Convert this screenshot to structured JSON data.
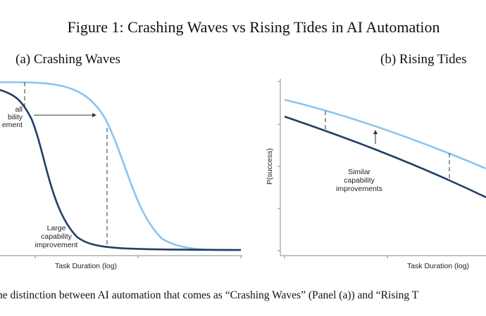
{
  "figure": {
    "title": "Figure 1: Crashing Waves vs Rising Tides in AI Automation",
    "caption": "he distinction between AI automation that comes as “Crashing Waves” (Panel (a)) and “Rising T"
  },
  "panel_a": {
    "title": "(a) Crashing Waves",
    "xlabel": "Task Duration (log)",
    "annotation_small": [
      "all",
      "bility",
      "ement"
    ],
    "annotation_large": [
      "Large",
      "capability",
      "improvement"
    ]
  },
  "panel_b": {
    "title": "(b) Rising Tides",
    "xlabel": "Task Duration (log)",
    "ylabel": "P(success)",
    "annotation": [
      "Similar",
      "capability",
      "improvements"
    ]
  },
  "colors": {
    "before": "#1f3f66",
    "after": "#8cc4ec",
    "guide": "#333333"
  }
}
